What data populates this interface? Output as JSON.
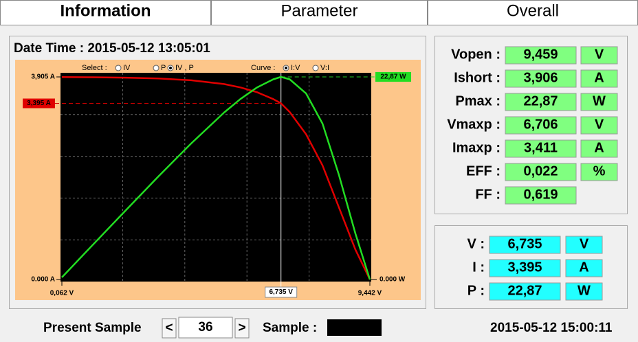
{
  "tabs": [
    "Information",
    "Parameter",
    "Overall"
  ],
  "active_tab": 0,
  "date_time": "Date Time : 2015-05-12 13:05:01",
  "chart_data": {
    "type": "line",
    "select": {
      "label": "Select :",
      "options": [
        "IV",
        "P",
        "IV , P"
      ],
      "selected": 2
    },
    "curve": {
      "label": "Curve :",
      "options": [
        "I:V",
        "V:I"
      ],
      "selected": 0
    },
    "x": [
      0.062,
      1,
      2,
      3,
      4,
      5,
      5.5,
      6,
      6.5,
      6.735,
      7,
      7.5,
      8,
      8.5,
      9,
      9.442
    ],
    "series": [
      {
        "color": "#e00000",
        "axis": "y",
        "values": [
          3.903,
          3.899,
          3.891,
          3.875,
          3.84,
          3.767,
          3.703,
          3.611,
          3.477,
          3.395,
          3.229,
          2.8,
          2.2,
          1.388,
          0.578,
          0
        ]
      },
      {
        "color": "#22dd22",
        "axis": "y2",
        "values": [
          0.242,
          3.899,
          7.78,
          11.63,
          15.36,
          18.84,
          20.37,
          21.67,
          22.6,
          22.87,
          22.6,
          21.0,
          17.6,
          11.8,
          5.2,
          0
        ]
      }
    ],
    "xlim": [
      0.062,
      9.442
    ],
    "ylim": [
      0,
      3.905
    ],
    "y2lim": [
      0,
      22.87
    ],
    "xticks": [
      {
        "value": 0.062,
        "label": "0,062 V"
      },
      {
        "value": 9.442,
        "label": "9,442 V"
      }
    ],
    "yticks": [
      {
        "value": 3.905,
        "label": "3,905 A"
      },
      {
        "value": 0,
        "label": "0.000 A"
      }
    ],
    "y2ticks": [
      {
        "value": 0,
        "label": "0.000 W"
      }
    ],
    "cursor": {
      "x": {
        "value": 6.735,
        "label": "6,735 V"
      },
      "y": {
        "value": 3.395,
        "label": "3,395 A"
      },
      "y2": {
        "value": 22.87,
        "label": "22,87 W"
      }
    },
    "grid": true
  },
  "measurements": {
    "rows": [
      {
        "label": "Vopen :",
        "value": "9,459",
        "unit": "V"
      },
      {
        "label": "Ishort :",
        "value": "3,906",
        "unit": "A"
      },
      {
        "label": "Pmax :",
        "value": "22,87",
        "unit": "W"
      },
      {
        "label": "Vmaxp :",
        "value": "6,706",
        "unit": "V"
      },
      {
        "label": "Imaxp :",
        "value": "3,411",
        "unit": "A"
      },
      {
        "label": "EFF :",
        "value": "0,022",
        "unit": "%"
      },
      {
        "label": "FF :",
        "value": "0,619"
      }
    ]
  },
  "cursor_readout": {
    "rows": [
      {
        "label": "V :",
        "value": "6,735",
        "unit": "V"
      },
      {
        "label": "I :",
        "value": "3,395",
        "unit": "A"
      },
      {
        "label": "P :",
        "value": "22,87",
        "unit": "W"
      }
    ]
  },
  "footer": {
    "present_sample_label": "Present Sample",
    "prev": "<",
    "sample_index": "36",
    "next": ">",
    "sample_label": "Sample :",
    "timestamp": "2015-05-12 15:00:11"
  }
}
